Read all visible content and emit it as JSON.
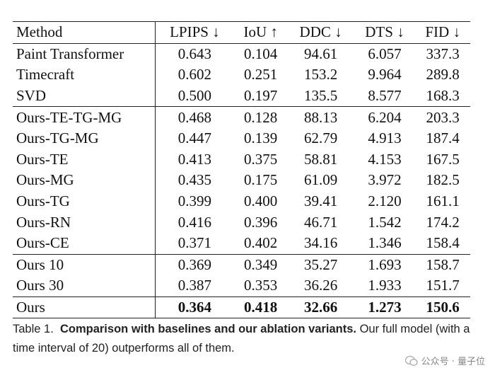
{
  "table": {
    "columns": [
      "Method",
      "LPIPS ↓",
      "IoU ↑",
      "DDC ↓",
      "DTS ↓",
      "FID ↓"
    ],
    "groups": [
      [
        [
          "Paint Transformer",
          "0.643",
          "0.104",
          "94.61",
          "6.057",
          "337.3"
        ],
        [
          "Timecraft",
          "0.602",
          "0.251",
          "153.2",
          "9.964",
          "289.8"
        ],
        [
          "SVD",
          "0.500",
          "0.197",
          "135.5",
          "8.577",
          "168.3"
        ]
      ],
      [
        [
          "Ours-TE-TG-MG",
          "0.468",
          "0.128",
          "88.13",
          "6.204",
          "203.3"
        ],
        [
          "Ours-TG-MG",
          "0.447",
          "0.139",
          "62.79",
          "4.913",
          "187.4"
        ],
        [
          "Ours-TE",
          "0.413",
          "0.375",
          "58.81",
          "4.153",
          "167.5"
        ],
        [
          "Ours-MG",
          "0.435",
          "0.175",
          "61.09",
          "3.972",
          "182.5"
        ],
        [
          "Ours-TG",
          "0.399",
          "0.400",
          "39.41",
          "2.120",
          "161.1"
        ],
        [
          "Ours-RN",
          "0.416",
          "0.396",
          "46.71",
          "1.542",
          "174.2"
        ],
        [
          "Ours-CE",
          "0.371",
          "0.402",
          "34.16",
          "1.346",
          "158.4"
        ]
      ],
      [
        [
          "Ours 10",
          "0.369",
          "0.349",
          "35.27",
          "1.693",
          "158.7"
        ],
        [
          "Ours 30",
          "0.387",
          "0.353",
          "36.26",
          "1.933",
          "151.7"
        ]
      ],
      [
        [
          "Ours",
          "0.364",
          "0.418",
          "32.66",
          "1.273",
          "150.6"
        ]
      ]
    ],
    "bold_last_row": true
  },
  "caption": {
    "label": "Table 1.",
    "bold": "Comparison with baselines and our ablation variants.",
    "rest": "Our full model (with a time interval of 20) outperforms all of them."
  },
  "watermark": "公众号 · 量子位"
}
